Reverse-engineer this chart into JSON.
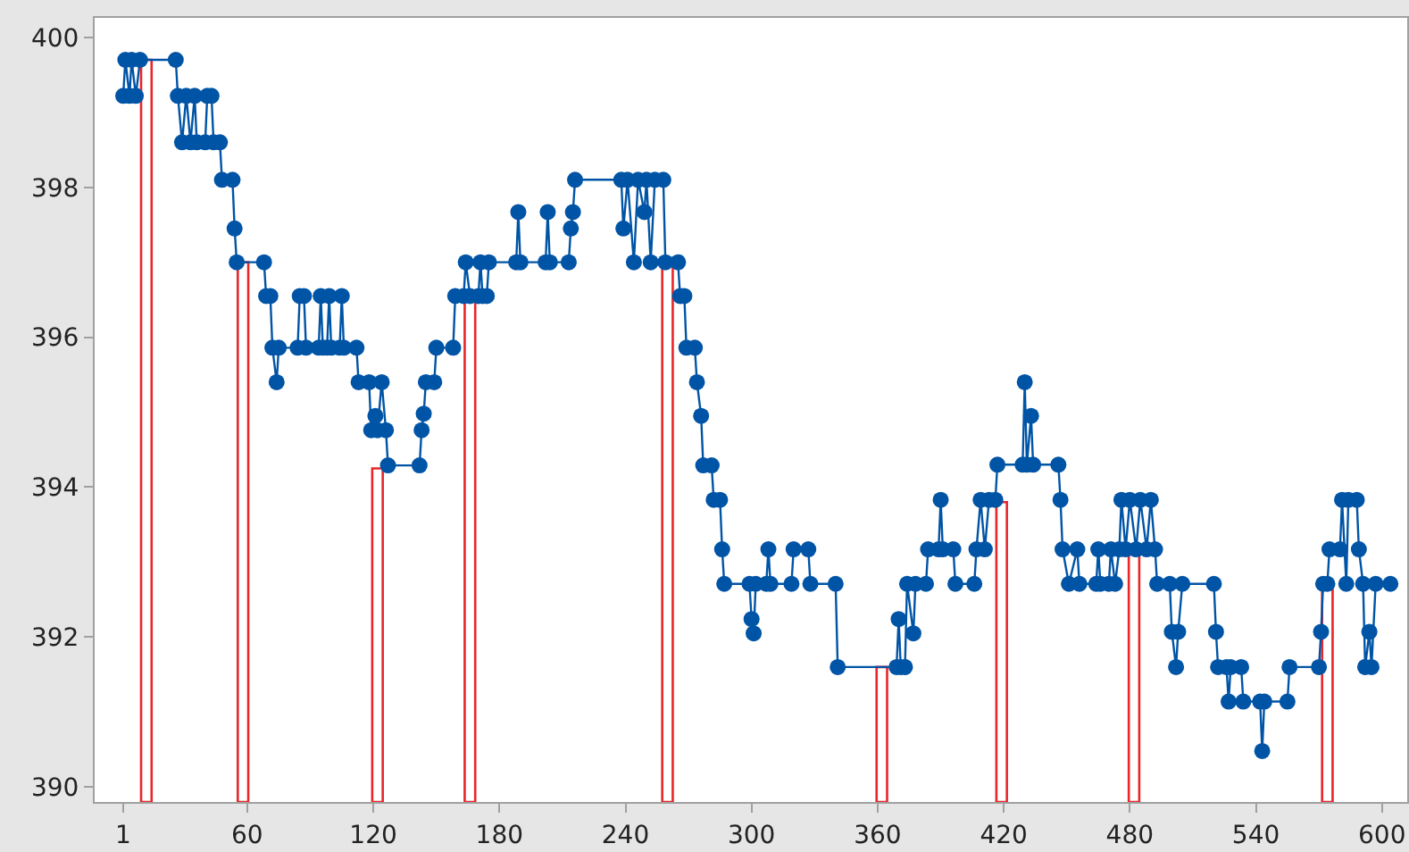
{
  "chart_data": {
    "type": "line",
    "xlim": [
      -12.6,
      612
    ],
    "xticks": [
      1,
      60,
      120,
      180,
      240,
      300,
      360,
      420,
      480,
      540,
      600
    ],
    "ylim": [
      389.8,
      400.26
    ],
    "yticks": [
      390,
      392,
      394,
      396,
      398,
      400
    ],
    "grid": false,
    "marker": "circle",
    "line_style": "solid",
    "series": [
      {
        "color": "#0054a6",
        "x": [
          1,
          2,
          4,
          5,
          7,
          9,
          26,
          27,
          29,
          31,
          33,
          35,
          36,
          40,
          41,
          43,
          44,
          47,
          48,
          53,
          54,
          55,
          68,
          69,
          71,
          72,
          74,
          75,
          84,
          85,
          87,
          88,
          94,
          95,
          96,
          98,
          99,
          100,
          104,
          105,
          106,
          112,
          113,
          118,
          119,
          121,
          122,
          124,
          126,
          127,
          142,
          143,
          144,
          145,
          149,
          150,
          158,
          159,
          163,
          164,
          166,
          170,
          171,
          172,
          174,
          175,
          188,
          189,
          190,
          202,
          203,
          204,
          213,
          214,
          215,
          216,
          238,
          239,
          241,
          244,
          246,
          249,
          250,
          252,
          254,
          258,
          259,
          265,
          266,
          268,
          269,
          273,
          274,
          276,
          277,
          281,
          282,
          285,
          286,
          287,
          299,
          300,
          301,
          302,
          307,
          308,
          309,
          319,
          320,
          327,
          328,
          340,
          341,
          369,
          370,
          371,
          373,
          374,
          377,
          378,
          383,
          384,
          389,
          390,
          391,
          396,
          397,
          406,
          407,
          409,
          411,
          413,
          416,
          417,
          429,
          430,
          431,
          433,
          434,
          446,
          447,
          448,
          451,
          455,
          456,
          464,
          465,
          466,
          470,
          471,
          473,
          475,
          476,
          478,
          480,
          483,
          485,
          488,
          490,
          492,
          493,
          499,
          500,
          502,
          503,
          505,
          520,
          521,
          522,
          526,
          527,
          528,
          533,
          534,
          542,
          543,
          544,
          555,
          556,
          570,
          571,
          572,
          574,
          575,
          580,
          581,
          583,
          584,
          588,
          589,
          591,
          592,
          594,
          595,
          597,
          604
        ],
        "values": [
          399.22,
          399.7,
          399.22,
          399.7,
          399.22,
          399.7,
          399.7,
          399.22,
          398.6,
          399.22,
          398.6,
          399.22,
          398.6,
          398.6,
          399.22,
          399.22,
          398.6,
          398.6,
          398.1,
          398.1,
          397.45,
          397.0,
          397.0,
          396.55,
          396.55,
          395.86,
          395.4,
          395.86,
          395.86,
          396.55,
          396.55,
          395.86,
          395.86,
          396.55,
          395.86,
          395.86,
          396.55,
          395.86,
          395.86,
          396.55,
          395.86,
          395.86,
          395.4,
          395.4,
          394.76,
          394.95,
          394.76,
          395.4,
          394.76,
          394.29,
          394.29,
          394.76,
          394.98,
          395.4,
          395.4,
          395.86,
          395.86,
          396.55,
          396.55,
          397.0,
          396.55,
          396.55,
          397.0,
          396.55,
          396.55,
          397.0,
          397.0,
          397.67,
          397.0,
          397.0,
          397.67,
          397.0,
          397.0,
          397.45,
          397.67,
          398.1,
          398.1,
          397.45,
          398.1,
          397.0,
          398.1,
          397.67,
          398.1,
          397.0,
          398.1,
          398.1,
          397.0,
          397.0,
          396.55,
          396.55,
          395.86,
          395.86,
          395.4,
          394.95,
          394.29,
          394.29,
          393.83,
          393.83,
          393.17,
          392.71,
          392.71,
          392.24,
          392.05,
          392.71,
          392.71,
          393.17,
          392.71,
          392.71,
          393.17,
          393.17,
          392.71,
          392.71,
          391.6,
          391.6,
          392.24,
          391.6,
          391.6,
          392.71,
          392.05,
          392.71,
          392.71,
          393.17,
          393.17,
          393.83,
          393.17,
          393.17,
          392.71,
          392.71,
          393.17,
          393.83,
          393.17,
          393.83,
          393.83,
          394.3,
          394.3,
          395.4,
          394.3,
          394.95,
          394.3,
          394.3,
          393.83,
          393.17,
          392.71,
          393.17,
          392.71,
          392.71,
          393.17,
          392.71,
          392.71,
          393.17,
          392.71,
          393.17,
          393.83,
          393.17,
          393.83,
          393.17,
          393.83,
          393.17,
          393.83,
          393.17,
          392.71,
          392.71,
          392.07,
          391.6,
          392.07,
          392.71,
          392.71,
          392.07,
          391.6,
          391.6,
          391.14,
          391.6,
          391.6,
          391.14,
          391.14,
          390.48,
          391.14,
          391.14,
          391.6,
          391.6,
          392.07,
          392.71,
          392.71,
          393.17,
          393.17,
          393.83,
          392.71,
          393.83,
          393.83,
          393.17,
          392.71,
          391.6,
          392.07,
          391.6,
          392.71,
          392.71
        ]
      },
      {
        "type": "bar",
        "color": "#e8262b",
        "x": [
          12,
          58,
          122,
          166,
          260,
          362,
          419,
          482,
          574
        ],
        "base": [
          389.8,
          389.8,
          389.8,
          389.8,
          389.8,
          389.8,
          389.8,
          389.8,
          389.8
        ],
        "values": [
          9.9,
          7.2,
          4.45,
          6.7,
          7.2,
          1.8,
          4.0,
          3.3,
          2.9
        ]
      }
    ]
  }
}
